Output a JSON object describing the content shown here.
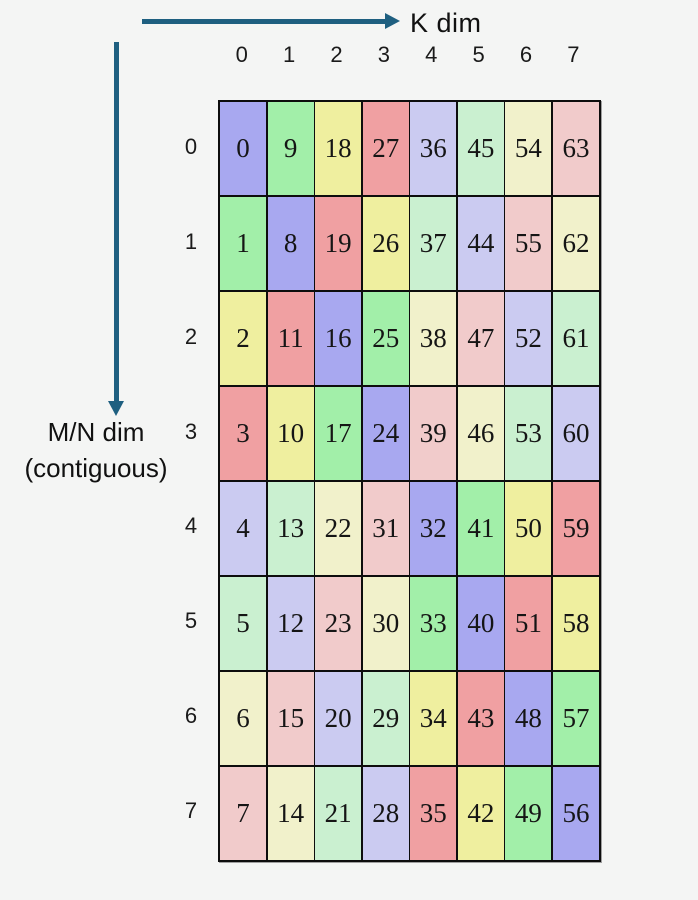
{
  "background": "#f4f5f4",
  "axes": {
    "k_label": "K dim",
    "mn_label_line1": "M/N dim",
    "mn_label_line2": "(contiguous)",
    "arrow_color": "#1e5f80"
  },
  "grid": {
    "col_headers": [
      "0",
      "1",
      "2",
      "3",
      "4",
      "5",
      "6",
      "7"
    ],
    "row_headers": [
      "0",
      "1",
      "2",
      "3",
      "4",
      "5",
      "6",
      "7"
    ],
    "values": [
      [
        0,
        9,
        18,
        27,
        36,
        45,
        54,
        63
      ],
      [
        1,
        8,
        19,
        26,
        37,
        44,
        55,
        62
      ],
      [
        2,
        11,
        16,
        25,
        38,
        47,
        52,
        61
      ],
      [
        3,
        10,
        17,
        24,
        39,
        46,
        53,
        60
      ],
      [
        4,
        13,
        22,
        31,
        32,
        41,
        50,
        59
      ],
      [
        5,
        12,
        23,
        30,
        33,
        40,
        51,
        58
      ],
      [
        6,
        15,
        20,
        29,
        34,
        43,
        48,
        57
      ],
      [
        7,
        14,
        21,
        28,
        35,
        42,
        49,
        56
      ]
    ],
    "color_rule": "value % 8",
    "palette": [
      "#a8a8f0",
      "#a2efa9",
      "#efef9f",
      "#f0a0a2",
      "#cbcbf1",
      "#caf0d0",
      "#f1f1cb",
      "#f1cbcb"
    ],
    "border_color": "#0d0d0d"
  }
}
